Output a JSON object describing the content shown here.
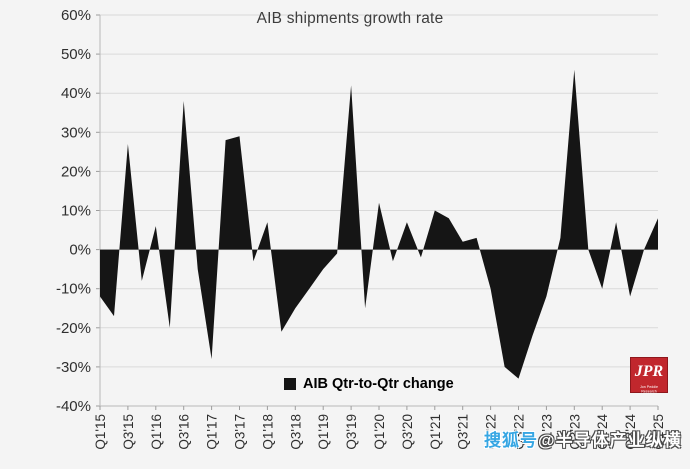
{
  "chart_data": {
    "type": "area",
    "title": "AIB shipments growth rate",
    "legend": "AIB Qtr-to-Qtr change",
    "categories": [
      "Q1'15",
      "Q2'15",
      "Q3'15",
      "Q4'15",
      "Q1'16",
      "Q2'16",
      "Q3'16",
      "Q4'16",
      "Q1'17",
      "Q2'17",
      "Q3'17",
      "Q4'17",
      "Q1'18",
      "Q2'18",
      "Q3'18",
      "Q4'18",
      "Q1'19",
      "Q2'19",
      "Q3'19",
      "Q4'19",
      "Q1'20",
      "Q2'20",
      "Q3'20",
      "Q4'20",
      "Q1'21",
      "Q2'21",
      "Q3'21",
      "Q4'21",
      "Q1'22",
      "Q2'22",
      "Q3'22",
      "Q4'22",
      "Q1'23",
      "Q2'23",
      "Q3'23",
      "Q4'23",
      "Q1'24",
      "Q2'24",
      "Q3'24",
      "Q4'24",
      "Q1'25"
    ],
    "values": [
      -12,
      -17,
      27,
      -8,
      6,
      -20,
      38,
      -5,
      -28,
      28,
      29,
      -3,
      7,
      -21,
      -15,
      -10,
      -5,
      -1,
      42,
      -15,
      12,
      -3,
      7,
      -2,
      10,
      8,
      2,
      3,
      -10,
      -30,
      -33,
      -22,
      -12,
      3,
      46,
      0,
      -10,
      7,
      -12,
      0,
      8
    ],
    "ylim": [
      -40,
      60
    ],
    "y_tick_labels": [
      "60%",
      "50%",
      "40%",
      "30%",
      "20%",
      "10%",
      "0%",
      "-10%",
      "-20%",
      "-30%",
      "-40%"
    ],
    "x_tick_every": 2,
    "grid": "horizontal",
    "legend_position": "bottom-center-inside",
    "fill_color": "#151515",
    "grid_color": "#d9d9d9",
    "axis_color": "#b9b9b9",
    "tick_color": "#9c9c9c",
    "label_color": "#2f2f2f"
  },
  "branding": {
    "logo_text": "JPR",
    "logo_subtext": "Jon Peddie Research",
    "logo_bg": "#c1272d"
  },
  "watermark": {
    "prefix": "搜狐号",
    "handle": "@半导体产业纵横"
  }
}
